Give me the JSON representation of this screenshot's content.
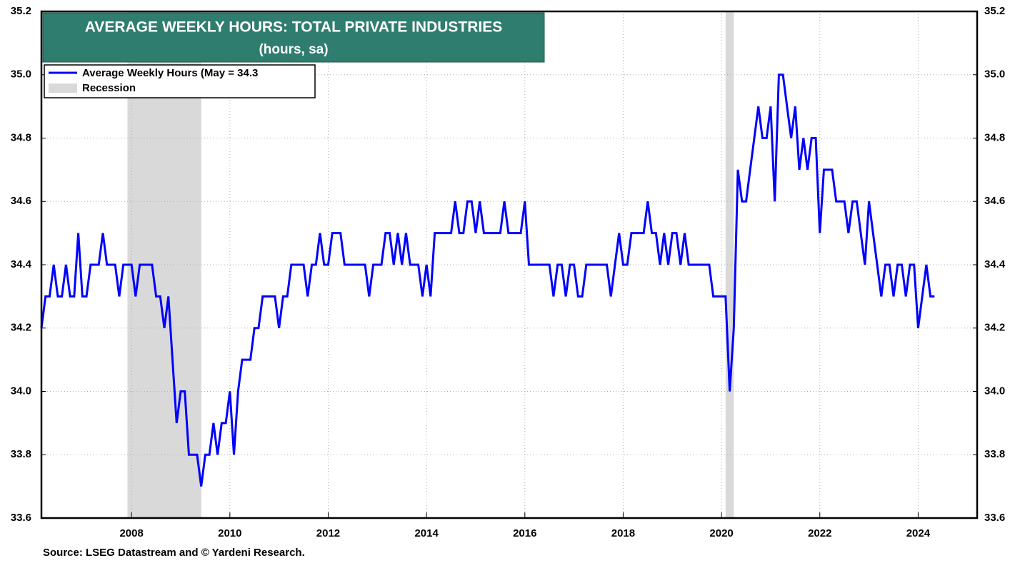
{
  "chart_data": {
    "type": "line",
    "title": "AVERAGE WEEKLY HOURS: TOTAL PRIVATE INDUSTRIES",
    "subtitle": "(hours, sa)",
    "source": "Source: LSEG Datastream and © Yardeni Research.",
    "legend_recession": "Recession",
    "recession_color": "#d9d9d9",
    "recessions": [
      {
        "start": 2007.917,
        "end": 2009.417
      },
      {
        "start": 2020.083,
        "end": 2020.25
      }
    ],
    "xlim": [
      2006.167,
      2025.2
    ],
    "ylim": [
      33.6,
      35.2
    ],
    "xticks": [
      2008,
      2010,
      2012,
      2014,
      2016,
      2018,
      2020,
      2022,
      2024
    ],
    "yticks": [
      33.6,
      33.8,
      {
        "value": 34,
        "label": "34.0"
      },
      34.2,
      34.4,
      34.6,
      34.8,
      {
        "value": 35,
        "label": "35.0"
      },
      35.2
    ],
    "grid": true,
    "legend": "upper left",
    "series": [
      {
        "name": "Average Weekly Hours (May = 34.3",
        "color": "#0000ff",
        "x": [
          2006.167,
          2006.25,
          2006.333,
          2006.417,
          2006.5,
          2006.583,
          2006.667,
          2006.75,
          2006.833,
          2006.917,
          2007,
          2007.083,
          2007.167,
          2007.25,
          2007.333,
          2007.417,
          2007.5,
          2007.583,
          2007.667,
          2007.75,
          2007.833,
          2007.917,
          2008,
          2008.083,
          2008.167,
          2008.25,
          2008.333,
          2008.417,
          2008.5,
          2008.583,
          2008.667,
          2008.75,
          2008.833,
          2008.917,
          2009,
          2009.083,
          2009.167,
          2009.25,
          2009.333,
          2009.417,
          2009.5,
          2009.583,
          2009.667,
          2009.75,
          2009.833,
          2009.917,
          2010,
          2010.083,
          2010.167,
          2010.25,
          2010.333,
          2010.417,
          2010.5,
          2010.583,
          2010.667,
          2010.75,
          2010.833,
          2010.917,
          2011,
          2011.083,
          2011.167,
          2011.25,
          2011.333,
          2011.417,
          2011.5,
          2011.583,
          2011.667,
          2011.75,
          2011.833,
          2011.917,
          2012,
          2012.083,
          2012.167,
          2012.25,
          2012.333,
          2012.417,
          2012.5,
          2012.583,
          2012.667,
          2012.75,
          2012.833,
          2012.917,
          2013,
          2013.083,
          2013.167,
          2013.25,
          2013.333,
          2013.417,
          2013.5,
          2013.583,
          2013.667,
          2013.75,
          2013.833,
          2013.917,
          2014,
          2014.083,
          2014.167,
          2014.25,
          2014.333,
          2014.417,
          2014.5,
          2014.583,
          2014.667,
          2014.75,
          2014.833,
          2014.917,
          2015,
          2015.083,
          2015.167,
          2015.25,
          2015.333,
          2015.417,
          2015.5,
          2015.583,
          2015.667,
          2015.75,
          2015.833,
          2015.917,
          2016,
          2016.083,
          2016.167,
          2016.25,
          2016.333,
          2016.417,
          2016.5,
          2016.583,
          2016.667,
          2016.75,
          2016.833,
          2016.917,
          2017,
          2017.083,
          2017.167,
          2017.25,
          2017.333,
          2017.417,
          2017.5,
          2017.583,
          2017.667,
          2017.75,
          2017.833,
          2017.917,
          2018,
          2018.083,
          2018.167,
          2018.25,
          2018.333,
          2018.417,
          2018.5,
          2018.583,
          2018.667,
          2018.75,
          2018.833,
          2018.917,
          2019,
          2019.083,
          2019.167,
          2019.25,
          2019.333,
          2019.417,
          2019.5,
          2019.583,
          2019.667,
          2019.75,
          2019.833,
          2019.917,
          2020,
          2020.083,
          2020.167,
          2020.25,
          2020.333,
          2020.417,
          2020.5,
          2020.583,
          2020.667,
          2020.75,
          2020.833,
          2020.917,
          2021,
          2021.083,
          2021.167,
          2021.25,
          2021.333,
          2021.417,
          2021.5,
          2021.583,
          2021.667,
          2021.75,
          2021.833,
          2021.917,
          2022,
          2022.083,
          2022.167,
          2022.25,
          2022.333,
          2022.417,
          2022.5,
          2022.583,
          2022.667,
          2022.75,
          2022.833,
          2022.917,
          2023,
          2023.083,
          2023.167,
          2023.25,
          2023.333,
          2023.417,
          2023.5,
          2023.583,
          2023.667,
          2023.75,
          2023.833,
          2023.917,
          2024,
          2024.083,
          2024.167,
          2024.25,
          2024.333
        ],
        "values": [
          34.2,
          34.3,
          34.3,
          34.4,
          34.3,
          34.3,
          34.4,
          34.3,
          34.3,
          34.5,
          34.3,
          34.3,
          34.4,
          34.4,
          34.4,
          34.5,
          34.4,
          34.4,
          34.4,
          34.3,
          34.4,
          34.4,
          34.4,
          34.3,
          34.4,
          34.4,
          34.4,
          34.4,
          34.3,
          34.3,
          34.2,
          34.3,
          34.1,
          33.9,
          34.0,
          34.0,
          33.8,
          33.8,
          33.8,
          33.7,
          33.8,
          33.8,
          33.9,
          33.8,
          33.9,
          33.9,
          34.0,
          33.8,
          34.0,
          34.1,
          34.1,
          34.1,
          34.2,
          34.2,
          34.3,
          34.3,
          34.3,
          34.3,
          34.2,
          34.3,
          34.3,
          34.4,
          34.4,
          34.4,
          34.4,
          34.3,
          34.4,
          34.4,
          34.5,
          34.4,
          34.4,
          34.5,
          34.5,
          34.5,
          34.4,
          34.4,
          34.4,
          34.4,
          34.4,
          34.4,
          34.3,
          34.4,
          34.4,
          34.4,
          34.5,
          34.5,
          34.4,
          34.5,
          34.4,
          34.5,
          34.4,
          34.4,
          34.4,
          34.3,
          34.4,
          34.3,
          34.5,
          34.5,
          34.5,
          34.5,
          34.5,
          34.6,
          34.5,
          34.5,
          34.6,
          34.6,
          34.5,
          34.6,
          34.5,
          34.5,
          34.5,
          34.5,
          34.5,
          34.6,
          34.5,
          34.5,
          34.5,
          34.5,
          34.6,
          34.4,
          34.4,
          34.4,
          34.4,
          34.4,
          34.4,
          34.3,
          34.4,
          34.4,
          34.3,
          34.4,
          34.4,
          34.3,
          34.3,
          34.4,
          34.4,
          34.4,
          34.4,
          34.4,
          34.4,
          34.3,
          34.4,
          34.5,
          34.4,
          34.4,
          34.5,
          34.5,
          34.5,
          34.5,
          34.6,
          34.5,
          34.5,
          34.4,
          34.5,
          34.4,
          34.5,
          34.5,
          34.4,
          34.5,
          34.4,
          34.4,
          34.4,
          34.4,
          34.4,
          34.4,
          34.3,
          34.3,
          34.3,
          34.3,
          34.0,
          34.2,
          34.7,
          34.6,
          34.6,
          34.7,
          34.8,
          34.9,
          34.8,
          34.8,
          34.9,
          34.6,
          35.0,
          35.0,
          34.9,
          34.8,
          34.9,
          34.7,
          34.8,
          34.7,
          34.8,
          34.8,
          34.5,
          34.7,
          34.7,
          34.7,
          34.6,
          34.6,
          34.6,
          34.5,
          34.6,
          34.6,
          34.5,
          34.4,
          34.6,
          34.5,
          34.4,
          34.3,
          34.4,
          34.4,
          34.3,
          34.4,
          34.4,
          34.3,
          34.4,
          34.4,
          34.2,
          34.3,
          34.4,
          34.3,
          34.3
        ]
      }
    ]
  }
}
